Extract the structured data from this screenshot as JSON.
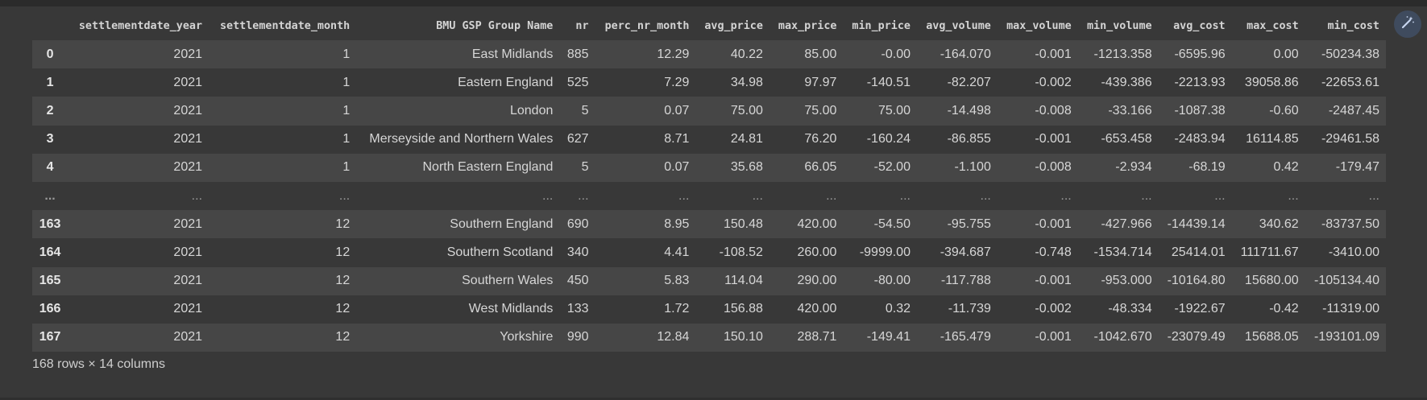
{
  "columns": [
    "",
    "settlementdate_year",
    "settlementdate_month",
    "BMU GSP Group Name",
    "nr",
    "perc_nr_month",
    "avg_price",
    "max_price",
    "min_price",
    "avg_volume",
    "max_volume",
    "min_volume",
    "avg_cost",
    "max_cost",
    "min_cost"
  ],
  "rows": [
    [
      "0",
      "2021",
      "1",
      "East Midlands",
      "885",
      "12.29",
      "40.22",
      "85.00",
      "-0.00",
      "-164.070",
      "-0.001",
      "-1213.358",
      "-6595.96",
      "0.00",
      "-50234.38"
    ],
    [
      "1",
      "2021",
      "1",
      "Eastern England",
      "525",
      "7.29",
      "34.98",
      "97.97",
      "-140.51",
      "-82.207",
      "-0.002",
      "-439.386",
      "-2213.93",
      "39058.86",
      "-22653.61"
    ],
    [
      "2",
      "2021",
      "1",
      "London",
      "5",
      "0.07",
      "75.00",
      "75.00",
      "75.00",
      "-14.498",
      "-0.008",
      "-33.166",
      "-1087.38",
      "-0.60",
      "-2487.45"
    ],
    [
      "3",
      "2021",
      "1",
      "Merseyside and Northern Wales",
      "627",
      "8.71",
      "24.81",
      "76.20",
      "-160.24",
      "-86.855",
      "-0.001",
      "-653.458",
      "-2483.94",
      "16114.85",
      "-29461.58"
    ],
    [
      "4",
      "2021",
      "1",
      "North Eastern England",
      "5",
      "0.07",
      "35.68",
      "66.05",
      "-52.00",
      "-1.100",
      "-0.008",
      "-2.934",
      "-68.19",
      "0.42",
      "-179.47"
    ],
    [
      "...",
      "...",
      "...",
      "...",
      "...",
      "...",
      "...",
      "...",
      "...",
      "...",
      "...",
      "...",
      "...",
      "...",
      "..."
    ],
    [
      "163",
      "2021",
      "12",
      "Southern England",
      "690",
      "8.95",
      "150.48",
      "420.00",
      "-54.50",
      "-95.755",
      "-0.001",
      "-427.966",
      "-14439.14",
      "340.62",
      "-83737.50"
    ],
    [
      "164",
      "2021",
      "12",
      "Southern Scotland",
      "340",
      "4.41",
      "-108.52",
      "260.00",
      "-9999.00",
      "-394.687",
      "-0.748",
      "-1534.714",
      "25414.01",
      "111711.67",
      "-3410.00"
    ],
    [
      "165",
      "2021",
      "12",
      "Southern Wales",
      "450",
      "5.83",
      "114.04",
      "290.00",
      "-80.00",
      "-117.788",
      "-0.001",
      "-953.000",
      "-10164.80",
      "15680.00",
      "-105134.40"
    ],
    [
      "166",
      "2021",
      "12",
      "West Midlands",
      "133",
      "1.72",
      "156.88",
      "420.00",
      "0.32",
      "-11.739",
      "-0.002",
      "-48.334",
      "-1922.67",
      "-0.42",
      "-11319.00"
    ],
    [
      "167",
      "2021",
      "12",
      "Yorkshire",
      "990",
      "12.84",
      "150.10",
      "288.71",
      "-149.41",
      "-165.479",
      "-0.001",
      "-1042.670",
      "-23079.49",
      "15688.05",
      "-193101.09"
    ]
  ],
  "shape_text": "168 rows × 14 columns",
  "magic_button_icon": "magic-wand-icon",
  "colors": {
    "background": "#383838",
    "row_alt": "#464646",
    "text": "#d6d6d6",
    "icon_bg": "#3f4b5e",
    "icon_fg": "#c8d6f0"
  }
}
